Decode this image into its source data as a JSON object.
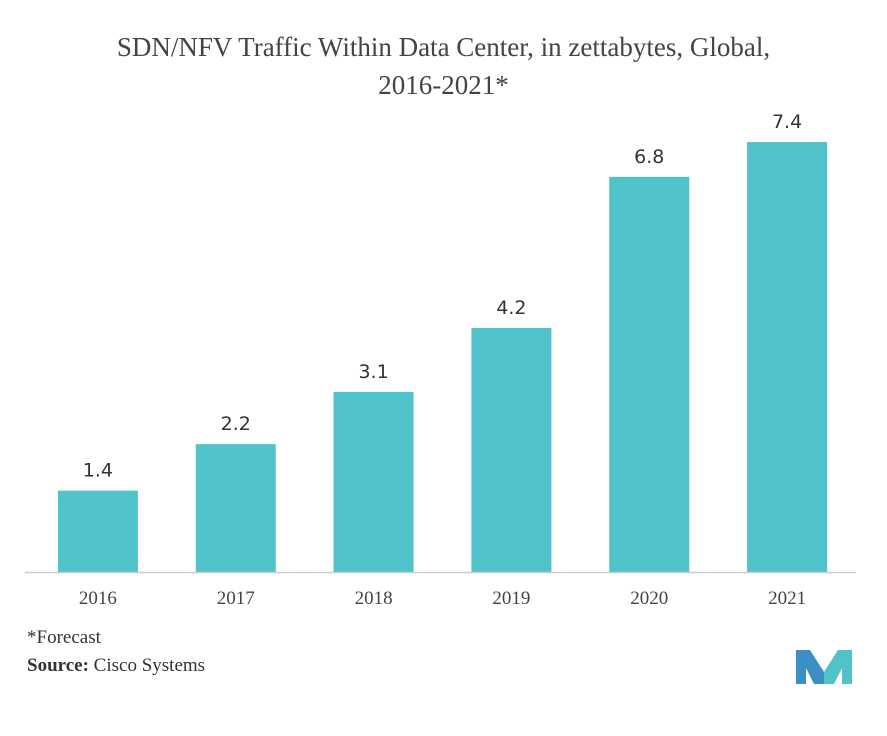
{
  "chart_data": {
    "type": "bar",
    "title_line1": "SDN/NFV Traffic Within Data Center, in zettabytes, Global,",
    "title_line2": "2016-2021*",
    "categories": [
      "2016",
      "2017",
      "2018",
      "2019",
      "2020",
      "2021"
    ],
    "values": [
      1.4,
      2.2,
      3.1,
      4.2,
      6.8,
      7.4
    ],
    "value_labels": [
      "1.4",
      "2.2",
      "3.1",
      "4.2",
      "6.8",
      "7.4"
    ],
    "xlabel": "",
    "ylabel": "",
    "ylim": [
      0,
      7.4
    ],
    "grid": false,
    "legend": "none",
    "bar_color": "#4fc3c9",
    "axis_color": "#cccccc"
  },
  "footer": {
    "footnote": "*Forecast",
    "source_label": "Source:",
    "source_value": " Cisco Systems"
  },
  "logo": {
    "name": "mordor-intelligence-logo",
    "color_left": "#3b8fc4",
    "color_right": "#4fc3c9"
  }
}
